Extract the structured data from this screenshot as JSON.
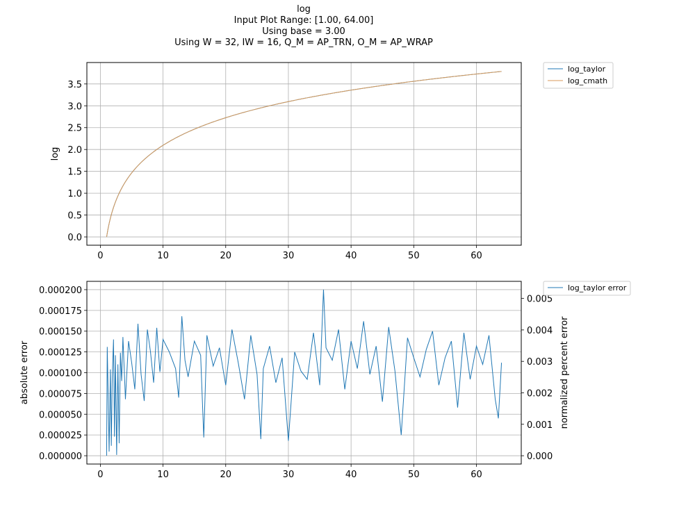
{
  "figure": {
    "title_lines": [
      "log",
      "Input Plot Range: [1.00, 64.00]",
      "Using base = 3.00",
      "Using W = 32, IW = 16, Q_M = AP_TRN, O_M = AP_WRAP"
    ]
  },
  "chart_data": [
    {
      "type": "line",
      "title": "",
      "xlabel": "",
      "ylabel": "log",
      "xlim": [
        -2.15,
        67.15
      ],
      "ylim": [
        -0.19,
        3.99
      ],
      "x_ticks": [
        0,
        10,
        20,
        30,
        40,
        50,
        60
      ],
      "x_tick_labels": [
        "0",
        "10",
        "20",
        "30",
        "40",
        "50",
        "60"
      ],
      "y_ticks": [
        0.0,
        0.5,
        1.0,
        1.5,
        2.0,
        2.5,
        3.0,
        3.5
      ],
      "y_tick_labels": [
        "0.0",
        "0.5",
        "1.0",
        "1.5",
        "2.0",
        "2.5",
        "3.0",
        "3.5"
      ],
      "grid": true,
      "legend_position": "outside upper right",
      "x_range": [
        1,
        64
      ],
      "log_base": 3,
      "series": [
        {
          "name": "log_taylor",
          "color": "#1f77b4",
          "function": "log base 3 of x",
          "x": [
            1,
            2,
            4,
            8,
            16,
            27,
            32,
            48,
            64
          ],
          "values": [
            0.0,
            0.631,
            1.262,
            1.893,
            2.524,
            3.0,
            3.155,
            3.524,
            3.786
          ]
        },
        {
          "name": "log_cmath",
          "color": "#d99a5a",
          "function": "log base 3 of x",
          "x": [
            1,
            2,
            4,
            8,
            16,
            27,
            32,
            48,
            64
          ],
          "values": [
            0.0,
            0.631,
            1.262,
            1.893,
            2.524,
            3.0,
            3.155,
            3.524,
            3.786
          ]
        }
      ]
    },
    {
      "type": "line",
      "title": "",
      "xlabel": "",
      "ylabel": "absolute error",
      "y2label": "normalized percent error",
      "xlim": [
        -2.15,
        67.15
      ],
      "ylim": [
        -1e-05,
        0.00021
      ],
      "y2lim": [
        -0.000264,
        0.005544
      ],
      "x_ticks": [
        0,
        10,
        20,
        30,
        40,
        50,
        60
      ],
      "x_tick_labels": [
        "0",
        "10",
        "20",
        "30",
        "40",
        "50",
        "60"
      ],
      "y_ticks": [
        0.0,
        2.5e-05,
        5e-05,
        7.5e-05,
        0.0001,
        0.000125,
        0.00015,
        0.000175,
        0.0002
      ],
      "y_tick_labels": [
        "0.000000",
        "0.000025",
        "0.000050",
        "0.000075",
        "0.000100",
        "0.000125",
        "0.000150",
        "0.000175",
        "0.000200"
      ],
      "y2_ticks": [
        0.0,
        0.001,
        0.002,
        0.003,
        0.004,
        0.005
      ],
      "y2_tick_labels": [
        "0.000",
        "0.001",
        "0.002",
        "0.003",
        "0.004",
        "0.005"
      ],
      "grid": true,
      "legend_position": "outside upper right",
      "series": [
        {
          "name": "log_taylor error",
          "color": "#1f77b4",
          "x": [
            1.0,
            1.1,
            1.25,
            1.4,
            1.6,
            1.75,
            1.9,
            2.1,
            2.25,
            2.4,
            2.6,
            2.8,
            3.0,
            3.2,
            3.4,
            3.6,
            4.0,
            4.5,
            5.0,
            5.5,
            6.0,
            6.5,
            7.0,
            7.5,
            8.0,
            8.5,
            9.0,
            9.5,
            10.0,
            11.0,
            12.0,
            12.5,
            13.0,
            13.5,
            14.0,
            15.0,
            16.0,
            16.5,
            17.0,
            18.0,
            19.0,
            20.0,
            21.0,
            22.0,
            23.0,
            24.0,
            25.0,
            25.6,
            26.0,
            27.0,
            28.0,
            29.0,
            30.0,
            31.0,
            32.0,
            33.0,
            34.0,
            35.0,
            35.6,
            36.0,
            37.0,
            38.0,
            39.0,
            40.0,
            41.0,
            42.0,
            43.0,
            44.0,
            45.0,
            46.0,
            47.0,
            48.0,
            49.0,
            50.0,
            51.0,
            52.0,
            53.0,
            54.0,
            55.0,
            56.0,
            57.0,
            58.0,
            59.0,
            60.0,
            61.0,
            62.0,
            63.0,
            63.5,
            64.0
          ],
          "values": [
            0.0,
            0.000131,
            7.2e-05,
            5e-06,
            0.000104,
            1.2e-05,
            9.5e-05,
            0.00014,
            2.3e-05,
            0.000121,
            1e-06,
            0.00011,
            1.5e-05,
            0.000124,
            9e-05,
            0.000143,
            6.8e-05,
            0.000138,
            0.000112,
            8e-05,
            0.000159,
            9.8e-05,
            6.6e-05,
            0.000152,
            0.000125,
            8.8e-05,
            0.000154,
            0.000101,
            0.00014,
            0.000125,
            0.000105,
            7e-05,
            0.000168,
            0.000115,
            9.5e-05,
            0.000138,
            0.000121,
            2.2e-05,
            0.000145,
            0.000108,
            0.00013,
            8.5e-05,
            0.000152,
            0.000112,
            6.8e-05,
            0.000145,
            9.8e-05,
            2e-05,
            0.000105,
            0.000132,
            8.8e-05,
            0.000118,
            1.8e-05,
            0.000125,
            0.000102,
            9.2e-05,
            0.000148,
            8.5e-05,
            0.0002,
            0.00013,
            0.000115,
            0.000152,
            8e-05,
            0.000138,
            0.000105,
            0.000162,
            9.8e-05,
            0.000132,
            6.5e-05,
            0.000155,
            0.000102,
            2.5e-05,
            0.000142,
            0.000118,
            9.5e-05,
            0.000128,
            0.00015,
            8.5e-05,
            0.000118,
            0.000138,
            5.8e-05,
            0.000148,
            9.2e-05,
            0.000132,
            0.00011,
            0.000145,
            6.8e-05,
            4.5e-05,
            0.000112
          ]
        }
      ]
    }
  ]
}
